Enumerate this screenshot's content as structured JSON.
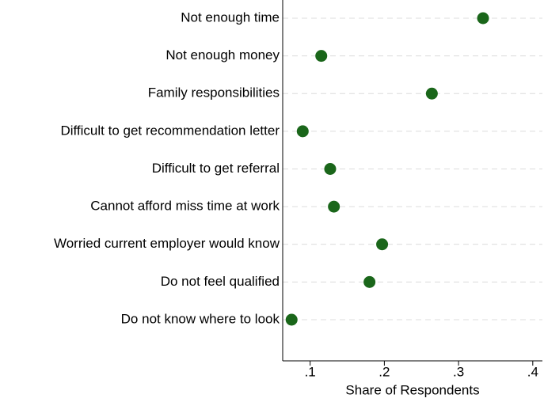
{
  "chart_data": {
    "type": "dot",
    "categories": [
      "Not enough time",
      "Not enough money",
      "Family responsibilities",
      "Difficult to get recommendation letter",
      "Difficult to get referral",
      "Cannot afford miss time at work",
      "Worried current employer would know",
      "Do not feel qualified",
      "Do not know where to look"
    ],
    "values": [
      0.333,
      0.115,
      0.264,
      0.09,
      0.127,
      0.132,
      0.197,
      0.18,
      0.075
    ],
    "color": "#1a661a",
    "xlabel": "Share of Respondents",
    "xlim": [
      0.063,
      0.413
    ],
    "xticks": [
      {
        "value": 0.1,
        "label": ".1"
      },
      {
        "value": 0.2,
        "label": ".2"
      },
      {
        "value": 0.3,
        "label": ".3"
      },
      {
        "value": 0.4,
        "label": ".4"
      }
    ],
    "grid": true
  }
}
